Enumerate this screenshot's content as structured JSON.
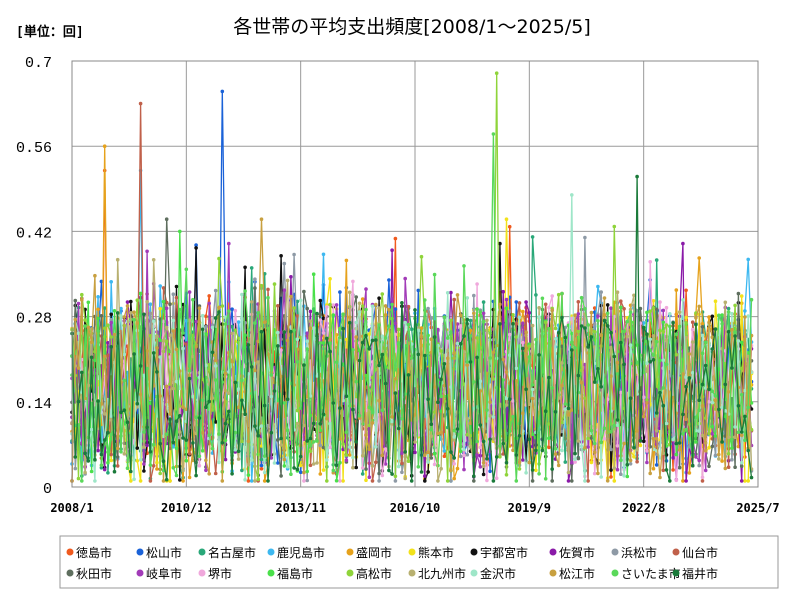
{
  "chart_data": {
    "type": "line",
    "title": "各世帯の平均支出頻度[2008/1～2025/5]",
    "unit_label": "[単位：回]",
    "ylim": [
      0,
      0.7
    ],
    "y_ticks": [
      "0",
      "0.14",
      "0.28",
      "0.42",
      "0.56",
      "0.7"
    ],
    "x_range": [
      "2008/1",
      "2025/7"
    ],
    "x_ticks": [
      "2008/1",
      "2010/12",
      "2013/11",
      "2016/10",
      "2019/9",
      "2022/8",
      "2025/7"
    ],
    "grid": true,
    "legend_position": "bottom",
    "series": [
      {
        "name": "徳島市",
        "color": "#f05a1e",
        "mean": 0.17,
        "peak": {
          "x": "2008/11",
          "y": 0.52
        }
      },
      {
        "name": "松山市",
        "color": "#1a62d8",
        "mean": 0.18,
        "peak": {
          "x": "2011/11",
          "y": 0.65
        }
      },
      {
        "name": "名古屋市",
        "color": "#2aa879",
        "mean": 0.16,
        "peak": {
          "x": "2012/8",
          "y": 0.36
        }
      },
      {
        "name": "鹿児島市",
        "color": "#3db8f0",
        "mean": 0.17,
        "peak": {
          "x": "2009/10",
          "y": 0.52
        }
      },
      {
        "name": "盛岡市",
        "color": "#e6a21c",
        "mean": 0.16,
        "peak": {
          "x": "2008/11",
          "y": 0.56
        }
      },
      {
        "name": "熊本市",
        "color": "#f2e21a",
        "mean": 0.15,
        "peak": {
          "x": "2019/2",
          "y": 0.44
        }
      },
      {
        "name": "宇都宮市",
        "color": "#111111",
        "mean": 0.16,
        "peak": {
          "x": "2018/12",
          "y": 0.4
        }
      },
      {
        "name": "佐賀市",
        "color": "#8a1aa8",
        "mean": 0.16,
        "peak": {
          "x": "2023/8",
          "y": 0.4
        }
      },
      {
        "name": "浜松市",
        "color": "#8e9aa6",
        "mean": 0.16,
        "peak": {
          "x": "2021/2",
          "y": 0.41
        }
      },
      {
        "name": "仙台市",
        "color": "#c0604a",
        "mean": 0.16,
        "peak": {
          "x": "2009/10",
          "y": 0.63
        }
      },
      {
        "name": "秋田市",
        "color": "#5e6e5e",
        "mean": 0.16,
        "peak": {
          "x": "2010/6",
          "y": 0.44
        }
      },
      {
        "name": "岐阜市",
        "color": "#a23bb8",
        "mean": 0.16,
        "peak": {
          "x": "2012/1",
          "y": 0.4
        }
      },
      {
        "name": "堺市",
        "color": "#f0a8dc",
        "mean": 0.15,
        "peak": {
          "x": "2022/10",
          "y": 0.37
        }
      },
      {
        "name": "福島市",
        "color": "#4ae04a",
        "mean": 0.16,
        "peak": {
          "x": "2010/10",
          "y": 0.42
        }
      },
      {
        "name": "高松市",
        "color": "#8fd43a",
        "mean": 0.17,
        "peak": {
          "x": "2018/11",
          "y": 0.68
        }
      },
      {
        "name": "北九州市",
        "color": "#b8b070",
        "mean": 0.15,
        "peak": {
          "x": "2015/2",
          "y": 0.32
        }
      },
      {
        "name": "金沢市",
        "color": "#9ee6c8",
        "mean": 0.16,
        "peak": {
          "x": "2020/10",
          "y": 0.48
        }
      },
      {
        "name": "松江市",
        "color": "#c8a040",
        "mean": 0.15,
        "peak": {
          "x": "2012/11",
          "y": 0.44
        }
      },
      {
        "name": "さいたま市",
        "color": "#5ad85a",
        "mean": 0.16,
        "peak": {
          "x": "2018/10",
          "y": 0.58
        }
      },
      {
        "name": "福井市",
        "color": "#1a7a3a",
        "mean": 0.16,
        "peak": {
          "x": "2022/6",
          "y": 0.51
        }
      }
    ]
  }
}
